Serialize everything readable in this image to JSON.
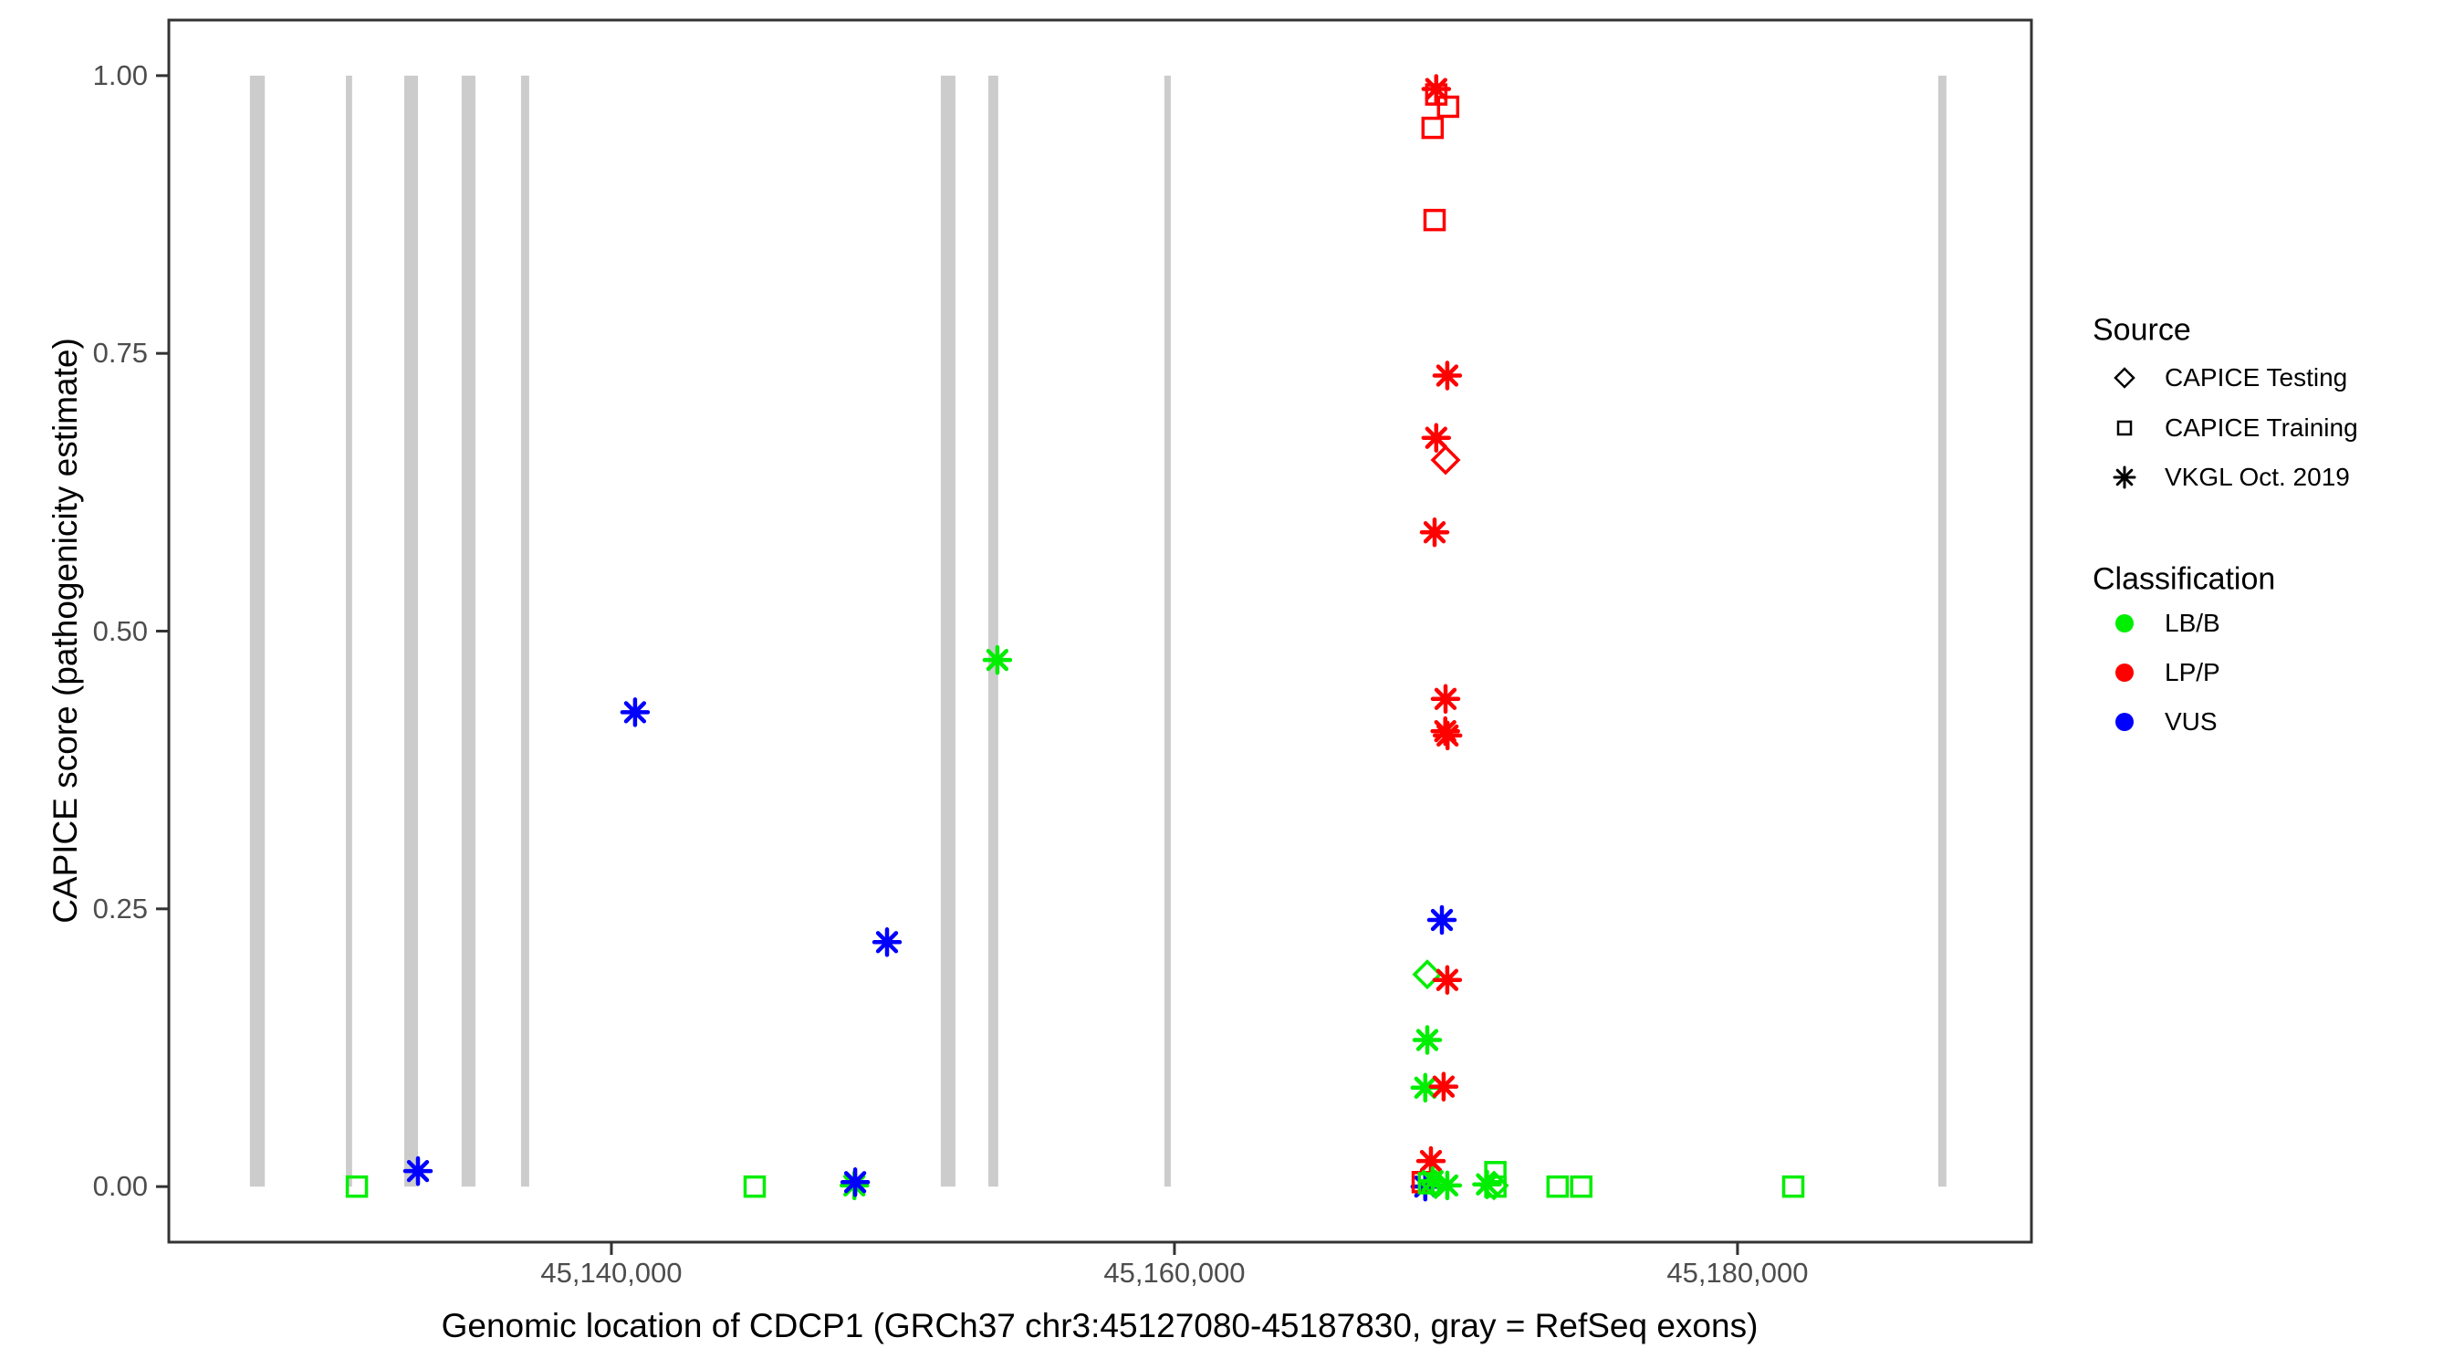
{
  "chart_data": {
    "type": "scatter",
    "title": "",
    "xlabel": "Genomic location of CDCP1 (GRCh37 chr3:45127080-45187830, gray = RefSeq exons)",
    "ylabel": "CAPICE score (pathogenicity estimate)",
    "xlim": [
      45124280,
      45190440
    ],
    "ylim": [
      -0.05,
      1.05
    ],
    "grid": "off",
    "exon_color": "#CCCCCC",
    "x_ticks": [
      {
        "value": 45140000,
        "label": "45,140,000"
      },
      {
        "value": 45160000,
        "label": "45,160,000"
      },
      {
        "value": 45180000,
        "label": "45,180,000"
      }
    ],
    "y_ticks": [
      {
        "value": 0.0,
        "label": "0.00"
      },
      {
        "value": 0.25,
        "label": "0.25"
      },
      {
        "value": 0.5,
        "label": "0.50"
      },
      {
        "value": 0.75,
        "label": "0.75"
      },
      {
        "value": 1.0,
        "label": "1.00"
      }
    ],
    "refseq_exons": [
      {
        "start": 45127160,
        "end": 45127690
      },
      {
        "start": 45130570,
        "end": 45130790
      },
      {
        "start": 45132640,
        "end": 45133130
      },
      {
        "start": 45134680,
        "end": 45135170
      },
      {
        "start": 45136790,
        "end": 45137080
      },
      {
        "start": 45151700,
        "end": 45152220
      },
      {
        "start": 45153390,
        "end": 45153740
      },
      {
        "start": 45159640,
        "end": 45159870
      },
      {
        "start": 45187130,
        "end": 45187420
      }
    ],
    "points": [
      {
        "pos": 45130960,
        "score": 0.0,
        "source": "CAPICE Training",
        "classification": "LB/B"
      },
      {
        "pos": 45133130,
        "score": 0.014,
        "source": "VKGL Oct. 2019",
        "classification": "VUS"
      },
      {
        "pos": 45145090,
        "score": 0.0,
        "source": "CAPICE Training",
        "classification": "LB/B"
      },
      {
        "pos": 45148630,
        "score": 0.001,
        "source": "VKGL Oct. 2019",
        "classification": "LB/B"
      },
      {
        "pos": 45148660,
        "score": 0.004,
        "source": "VKGL Oct. 2019",
        "classification": "VUS"
      },
      {
        "pos": 45140840,
        "score": 0.427,
        "source": "VKGL Oct. 2019",
        "classification": "VUS"
      },
      {
        "pos": 45149790,
        "score": 0.22,
        "source": "VKGL Oct. 2019",
        "classification": "VUS"
      },
      {
        "pos": 45153710,
        "score": 0.474,
        "source": "VKGL Oct. 2019",
        "classification": "LB/B"
      },
      {
        "pos": 45169300,
        "score": 0.988,
        "source": "VKGL Oct. 2019",
        "classification": "LP/P"
      },
      {
        "pos": 45169300,
        "score": 0.983,
        "source": "CAPICE Training",
        "classification": "LP/P"
      },
      {
        "pos": 45169720,
        "score": 0.972,
        "source": "CAPICE Training",
        "classification": "LP/P"
      },
      {
        "pos": 45169170,
        "score": 0.953,
        "source": "CAPICE Training",
        "classification": "LP/P"
      },
      {
        "pos": 45169240,
        "score": 0.87,
        "source": "CAPICE Training",
        "classification": "LP/P"
      },
      {
        "pos": 45169690,
        "score": 0.73,
        "source": "VKGL Oct. 2019",
        "classification": "LP/P"
      },
      {
        "pos": 45169300,
        "score": 0.674,
        "source": "VKGL Oct. 2019",
        "classification": "LP/P"
      },
      {
        "pos": 45169630,
        "score": 0.654,
        "source": "CAPICE Testing",
        "classification": "LP/P"
      },
      {
        "pos": 45169240,
        "score": 0.589,
        "source": "VKGL Oct. 2019",
        "classification": "LP/P"
      },
      {
        "pos": 45169630,
        "score": 0.439,
        "source": "VKGL Oct. 2019",
        "classification": "LP/P"
      },
      {
        "pos": 45169620,
        "score": 0.41,
        "source": "VKGL Oct. 2019",
        "classification": "LP/P"
      },
      {
        "pos": 45169700,
        "score": 0.406,
        "source": "VKGL Oct. 2019",
        "classification": "LP/P"
      },
      {
        "pos": 45169500,
        "score": 0.24,
        "source": "VKGL Oct. 2019",
        "classification": "VUS"
      },
      {
        "pos": 45168980,
        "score": 0.191,
        "source": "CAPICE Testing",
        "classification": "LB/B"
      },
      {
        "pos": 45169690,
        "score": 0.186,
        "source": "VKGL Oct. 2019",
        "classification": "LP/P"
      },
      {
        "pos": 45168980,
        "score": 0.132,
        "source": "VKGL Oct. 2019",
        "classification": "LB/B"
      },
      {
        "pos": 45168910,
        "score": 0.089,
        "source": "VKGL Oct. 2019",
        "classification": "LB/B"
      },
      {
        "pos": 45169560,
        "score": 0.09,
        "source": "VKGL Oct. 2019",
        "classification": "LP/P"
      },
      {
        "pos": 45169110,
        "score": 0.023,
        "source": "VKGL Oct. 2019",
        "classification": "LP/P"
      },
      {
        "pos": 45168910,
        "score": 0.0,
        "source": "VKGL Oct. 2019",
        "classification": "VUS"
      },
      {
        "pos": 45168820,
        "score": 0.004,
        "source": "CAPICE Training",
        "classification": "LP/P"
      },
      {
        "pos": 45169040,
        "score": 0.003,
        "source": "CAPICE Training",
        "classification": "LB/B"
      },
      {
        "pos": 45169170,
        "score": 0.005,
        "source": "VKGL Oct. 2019",
        "classification": "LB/B"
      },
      {
        "pos": 45169280,
        "score": 0.002,
        "source": "CAPICE Testing",
        "classification": "LB/B"
      },
      {
        "pos": 45169690,
        "score": 0.001,
        "source": "VKGL Oct. 2019",
        "classification": "LB/B"
      },
      {
        "pos": 45171400,
        "score": 0.013,
        "source": "CAPICE Training",
        "classification": "LB/B"
      },
      {
        "pos": 45171100,
        "score": 0.002,
        "source": "VKGL Oct. 2019",
        "classification": "LB/B"
      },
      {
        "pos": 45171350,
        "score": 0.001,
        "source": "CAPICE Testing",
        "classification": "LB/B"
      },
      {
        "pos": 45171400,
        "score": 0.0,
        "source": "CAPICE Training",
        "classification": "LB/B"
      },
      {
        "pos": 45173610,
        "score": 0.0,
        "source": "CAPICE Training",
        "classification": "LB/B"
      },
      {
        "pos": 45174450,
        "score": 0.0,
        "source": "CAPICE Training",
        "classification": "LB/B"
      },
      {
        "pos": 45181980,
        "score": 0.0,
        "source": "CAPICE Training",
        "classification": "LB/B"
      }
    ],
    "legend": {
      "source": {
        "title": "Source",
        "items": [
          {
            "label": "CAPICE Testing",
            "shape": "diamond"
          },
          {
            "label": "CAPICE Training",
            "shape": "square"
          },
          {
            "label": "VKGL Oct. 2019",
            "shape": "asterisk"
          }
        ]
      },
      "classification": {
        "title": "Classification",
        "items": [
          {
            "label": "LB/B",
            "color": "#00EE00"
          },
          {
            "label": "LP/P",
            "color": "#FF0000"
          },
          {
            "label": "VUS",
            "color": "#0000FF"
          }
        ]
      }
    },
    "colors": {
      "LB/B": "#00EE00",
      "LP/P": "#FF0000",
      "VUS": "#0000FF"
    },
    "panel_border_color": "#333333",
    "tick_color": "#333333"
  }
}
